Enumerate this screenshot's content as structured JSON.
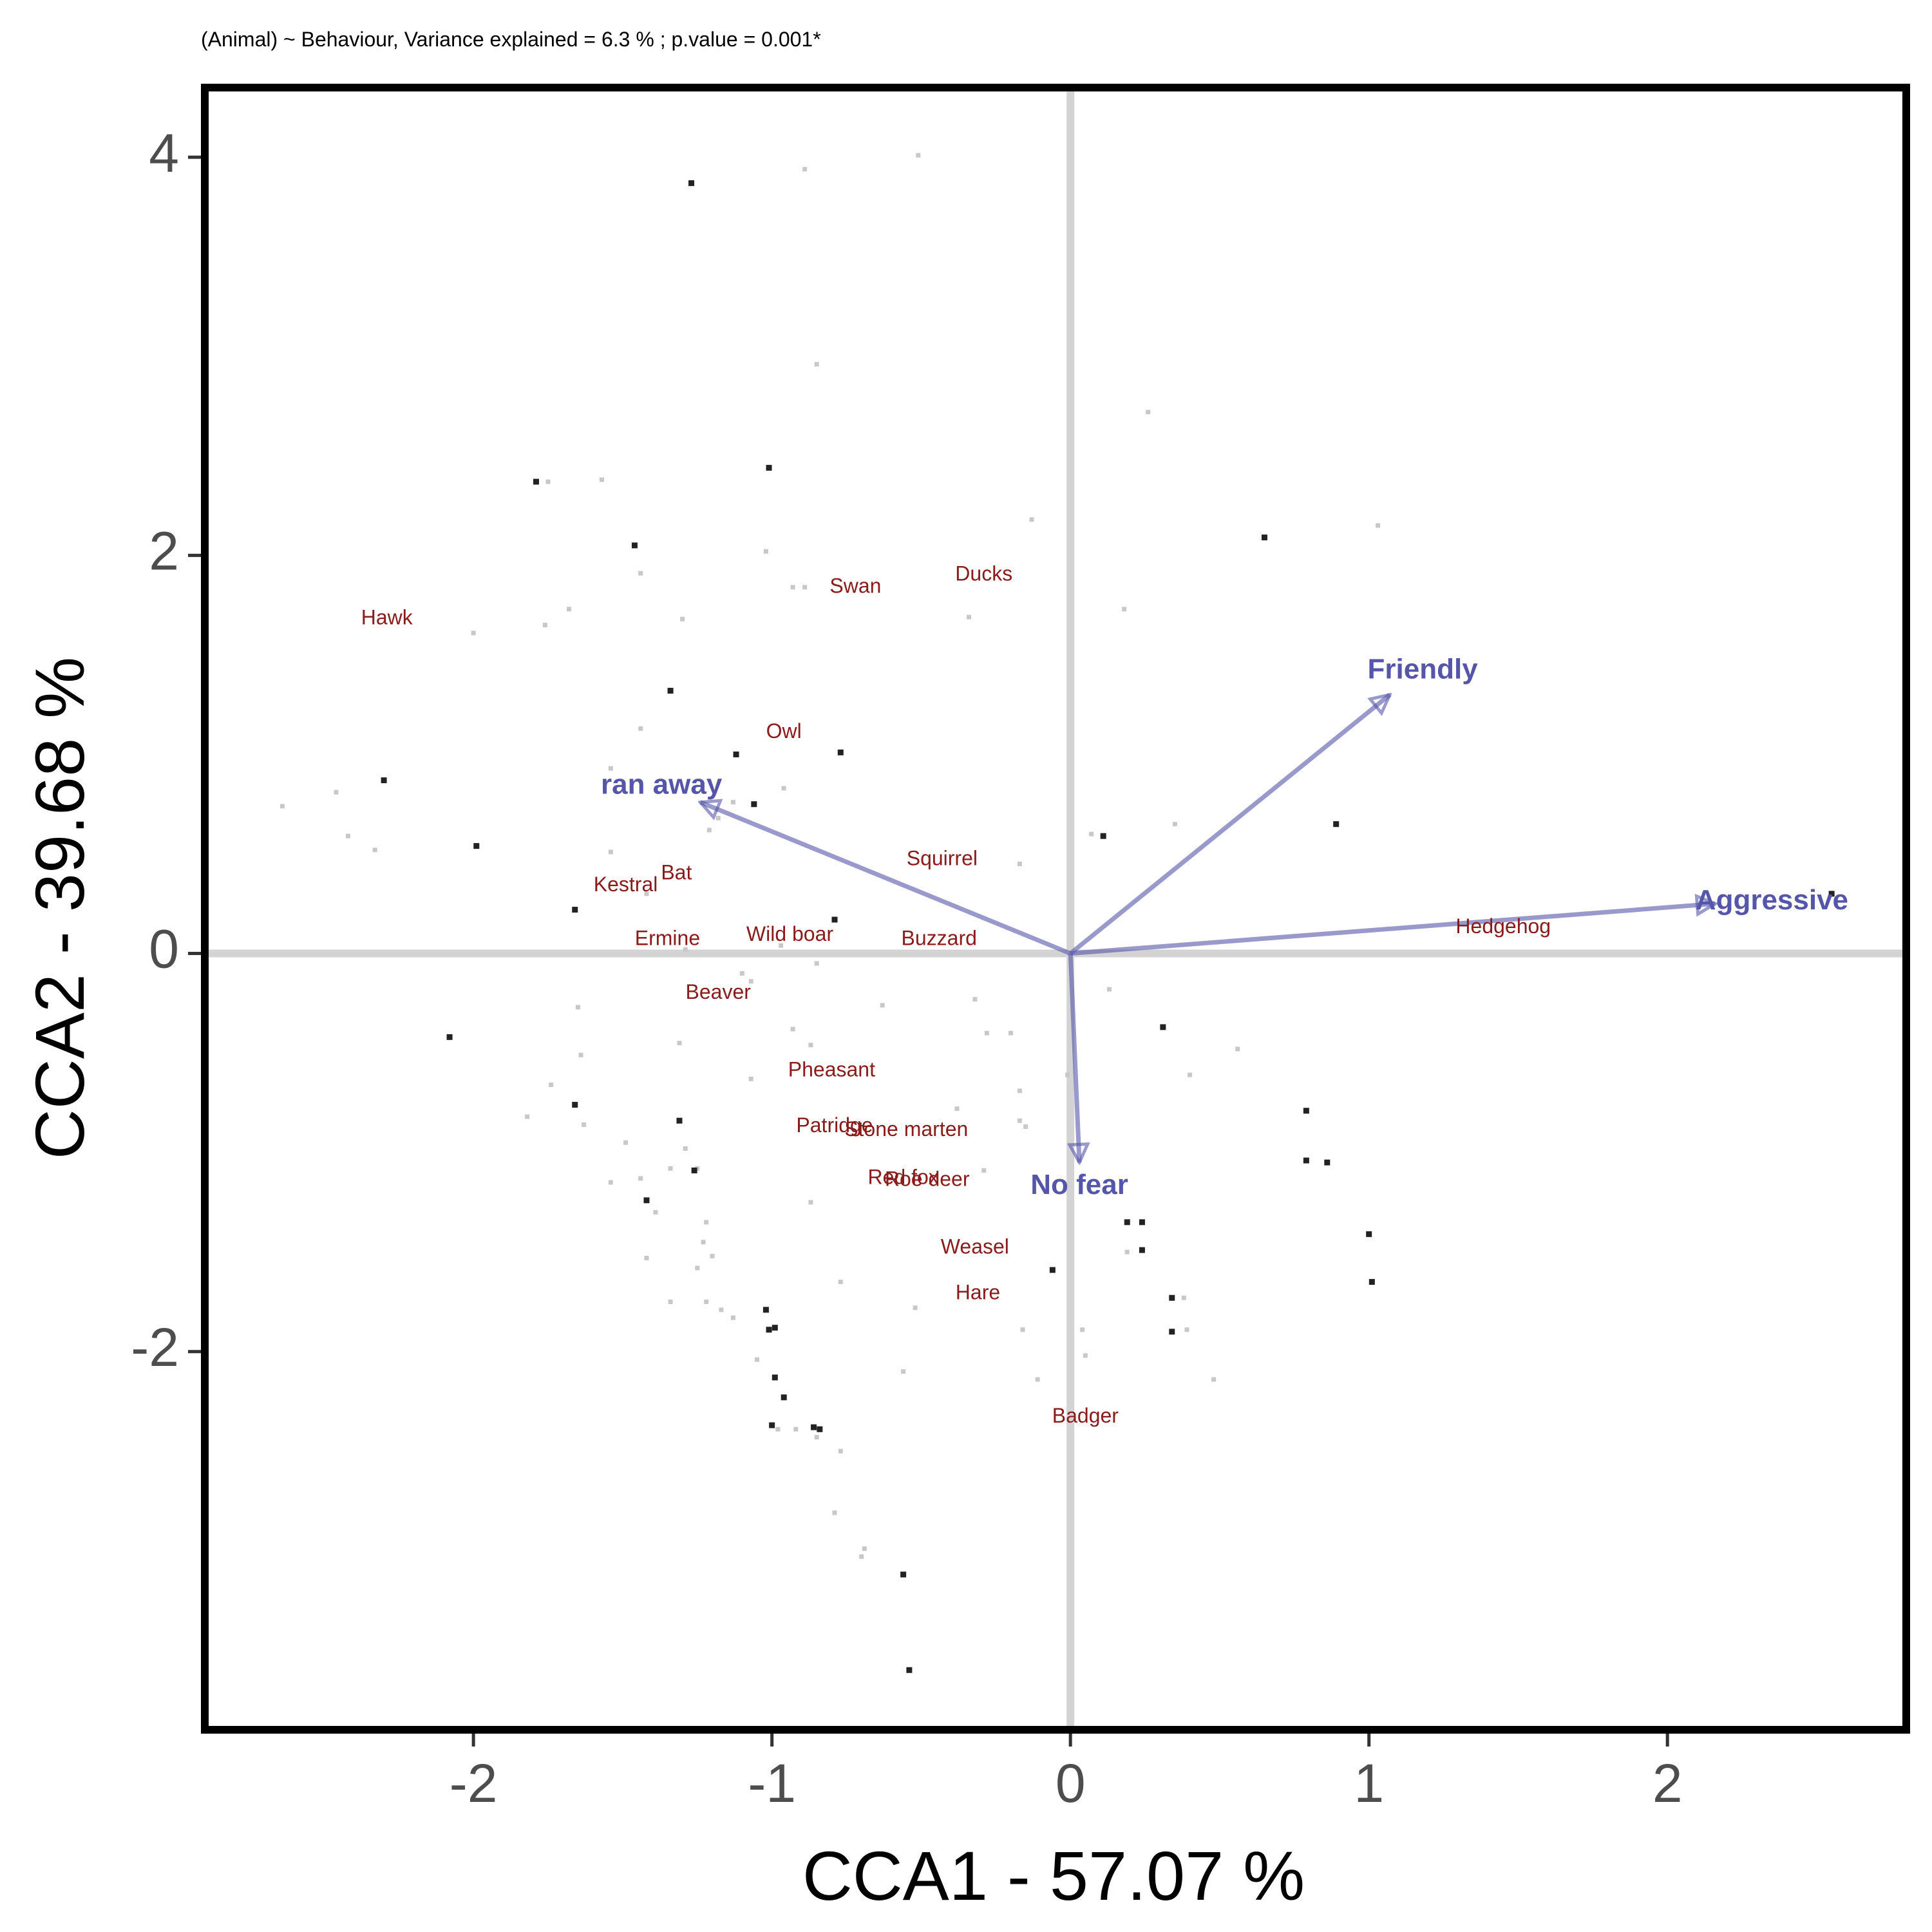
{
  "chart_data": {
    "type": "scatter",
    "title": "(Animal) ~ Behaviour, Variance explained = 6.3 % ; p.value = 0.001*",
    "xlabel": "CCA1 - 57.07 %",
    "ylabel": "CCA2 - 39.68 %",
    "xlim": [
      -2.9,
      2.8
    ],
    "ylim": [
      -3.9,
      4.35
    ],
    "x_ticks": [
      -2,
      -1,
      0,
      1,
      2
    ],
    "y_ticks": [
      -2,
      0,
      2,
      4
    ],
    "x_tick_labels": [
      "-2",
      "-1",
      "0",
      "1",
      "2"
    ],
    "y_tick_labels": [
      "-2",
      "0",
      "2",
      "4"
    ],
    "grid": false,
    "zero_lines": true,
    "colors": {
      "species": "#8b1a1a",
      "vectors": "#5555aa",
      "sites_dark": "#222222",
      "sites_light": "#c8c8c8",
      "zero_line": "#d3d3d3",
      "frame": "#000000"
    },
    "species": [
      {
        "name": "Hawk",
        "x": -2.29,
        "y": 1.68
      },
      {
        "name": "Swan",
        "x": -0.72,
        "y": 1.84
      },
      {
        "name": "Ducks",
        "x": -0.29,
        "y": 1.9
      },
      {
        "name": "Owl",
        "x": -0.96,
        "y": 1.11
      },
      {
        "name": "Squirrel",
        "x": -0.43,
        "y": 0.47
      },
      {
        "name": "Bat",
        "x": -1.32,
        "y": 0.4
      },
      {
        "name": "Kestral",
        "x": -1.49,
        "y": 0.34
      },
      {
        "name": "Ermine",
        "x": -1.35,
        "y": 0.07
      },
      {
        "name": "Wild boar",
        "x": -0.94,
        "y": 0.09
      },
      {
        "name": "Buzzard",
        "x": -0.44,
        "y": 0.07
      },
      {
        "name": "Hedgehog",
        "x": 1.45,
        "y": 0.13
      },
      {
        "name": "Beaver",
        "x": -1.18,
        "y": -0.2
      },
      {
        "name": "Pheasant",
        "x": -0.8,
        "y": -0.59
      },
      {
        "name": "Patridge",
        "x": -0.79,
        "y": -0.87
      },
      {
        "name": "Stone marten",
        "x": -0.55,
        "y": -0.89
      },
      {
        "name": "Red fox",
        "x": -0.56,
        "y": -1.13
      },
      {
        "name": "Roe deer",
        "x": -0.48,
        "y": -1.14
      },
      {
        "name": "Weasel",
        "x": -0.32,
        "y": -1.48
      },
      {
        "name": "Hare",
        "x": -0.31,
        "y": -1.71
      },
      {
        "name": "Badger",
        "x": 0.05,
        "y": -2.33
      }
    ],
    "vectors": [
      {
        "name": "Friendly",
        "x": 1.07,
        "y": 1.3,
        "label_x": 1.18,
        "label_y": 1.42
      },
      {
        "name": "ran away",
        "x": -1.24,
        "y": 0.76,
        "label_x": -1.37,
        "label_y": 0.84
      },
      {
        "name": "Aggressive",
        "x": 2.16,
        "y": 0.25,
        "label_x": 2.35,
        "label_y": 0.26
      },
      {
        "name": "No fear",
        "x": 0.03,
        "y": -1.05,
        "label_x": 0.03,
        "label_y": -1.17
      }
    ],
    "sites": [
      {
        "x": -1.27,
        "y": 3.87,
        "dark": true
      },
      {
        "x": -0.89,
        "y": 3.94,
        "dark": false
      },
      {
        "x": -0.51,
        "y": 4.01,
        "dark": false
      },
      {
        "x": -0.85,
        "y": 2.96,
        "dark": false
      },
      {
        "x": 0.26,
        "y": 2.72,
        "dark": false
      },
      {
        "x": -1.79,
        "y": 2.37,
        "dark": true
      },
      {
        "x": -1.75,
        "y": 2.37,
        "dark": false
      },
      {
        "x": -1.57,
        "y": 2.38,
        "dark": false
      },
      {
        "x": -1.01,
        "y": 2.44,
        "dark": true
      },
      {
        "x": -0.13,
        "y": 2.18,
        "dark": false
      },
      {
        "x": 0.65,
        "y": 2.09,
        "dark": true
      },
      {
        "x": 1.03,
        "y": 2.15,
        "dark": false
      },
      {
        "x": -1.46,
        "y": 2.05,
        "dark": true
      },
      {
        "x": -1.44,
        "y": 1.91,
        "dark": false
      },
      {
        "x": -1.02,
        "y": 2.02,
        "dark": false
      },
      {
        "x": -0.93,
        "y": 1.84,
        "dark": false
      },
      {
        "x": -0.89,
        "y": 1.84,
        "dark": false
      },
      {
        "x": -1.68,
        "y": 1.73,
        "dark": false
      },
      {
        "x": -1.76,
        "y": 1.65,
        "dark": false
      },
      {
        "x": -1.3,
        "y": 1.68,
        "dark": false
      },
      {
        "x": -2.0,
        "y": 1.61,
        "dark": false
      },
      {
        "x": -0.34,
        "y": 1.69,
        "dark": false
      },
      {
        "x": 0.18,
        "y": 1.73,
        "dark": false
      },
      {
        "x": -1.34,
        "y": 1.32,
        "dark": true
      },
      {
        "x": -1.44,
        "y": 1.13,
        "dark": false
      },
      {
        "x": -1.12,
        "y": 1.0,
        "dark": true
      },
      {
        "x": -0.77,
        "y": 1.01,
        "dark": true
      },
      {
        "x": -2.3,
        "y": 0.87,
        "dark": true
      },
      {
        "x": -1.54,
        "y": 0.93,
        "dark": false
      },
      {
        "x": -2.46,
        "y": 0.81,
        "dark": false
      },
      {
        "x": -2.64,
        "y": 0.74,
        "dark": false
      },
      {
        "x": -0.96,
        "y": 0.83,
        "dark": false
      },
      {
        "x": -1.06,
        "y": 0.75,
        "dark": true
      },
      {
        "x": -1.13,
        "y": 0.76,
        "dark": false
      },
      {
        "x": -1.18,
        "y": 0.68,
        "dark": false
      },
      {
        "x": 0.35,
        "y": 0.65,
        "dark": false
      },
      {
        "x": 0.89,
        "y": 0.65,
        "dark": true
      },
      {
        "x": 0.11,
        "y": 0.59,
        "dark": true
      },
      {
        "x": 0.07,
        "y": 0.6,
        "dark": false
      },
      {
        "x": -2.42,
        "y": 0.59,
        "dark": false
      },
      {
        "x": -1.99,
        "y": 0.54,
        "dark": true
      },
      {
        "x": -2.33,
        "y": 0.52,
        "dark": false
      },
      {
        "x": -1.54,
        "y": 0.51,
        "dark": false
      },
      {
        "x": -1.21,
        "y": 0.62,
        "dark": false
      },
      {
        "x": -0.17,
        "y": 0.45,
        "dark": false
      },
      {
        "x": -1.66,
        "y": 0.22,
        "dark": true
      },
      {
        "x": -1.42,
        "y": 0.3,
        "dark": false
      },
      {
        "x": -0.79,
        "y": 0.17,
        "dark": true
      },
      {
        "x": -0.97,
        "y": 0.04,
        "dark": false
      },
      {
        "x": -1.29,
        "y": 0.02,
        "dark": false
      },
      {
        "x": 2.55,
        "y": 0.3,
        "dark": true
      },
      {
        "x": -0.85,
        "y": -0.05,
        "dark": false
      },
      {
        "x": -1.1,
        "y": -0.1,
        "dark": false
      },
      {
        "x": -1.07,
        "y": -0.14,
        "dark": false
      },
      {
        "x": -0.32,
        "y": -0.23,
        "dark": false
      },
      {
        "x": -0.63,
        "y": -0.26,
        "dark": false
      },
      {
        "x": 0.13,
        "y": -0.18,
        "dark": false
      },
      {
        "x": -1.65,
        "y": -0.27,
        "dark": false
      },
      {
        "x": -1.31,
        "y": -0.45,
        "dark": false
      },
      {
        "x": -0.93,
        "y": -0.38,
        "dark": false
      },
      {
        "x": -0.87,
        "y": -0.46,
        "dark": false
      },
      {
        "x": -0.28,
        "y": -0.4,
        "dark": false
      },
      {
        "x": -0.2,
        "y": -0.4,
        "dark": false
      },
      {
        "x": 0.31,
        "y": -0.37,
        "dark": true
      },
      {
        "x": 0.56,
        "y": -0.48,
        "dark": false
      },
      {
        "x": -2.08,
        "y": -0.42,
        "dark": true
      },
      {
        "x": -1.64,
        "y": -0.51,
        "dark": false
      },
      {
        "x": -1.07,
        "y": -0.63,
        "dark": false
      },
      {
        "x": -0.01,
        "y": -0.61,
        "dark": false
      },
      {
        "x": 0.4,
        "y": -0.61,
        "dark": false
      },
      {
        "x": -1.74,
        "y": -0.66,
        "dark": false
      },
      {
        "x": -0.17,
        "y": -0.69,
        "dark": false
      },
      {
        "x": -1.66,
        "y": -0.76,
        "dark": true
      },
      {
        "x": -1.82,
        "y": -0.82,
        "dark": false
      },
      {
        "x": -0.38,
        "y": -0.78,
        "dark": false
      },
      {
        "x": 0.79,
        "y": -0.79,
        "dark": true
      },
      {
        "x": -1.63,
        "y": -0.86,
        "dark": false
      },
      {
        "x": -1.31,
        "y": -0.84,
        "dark": true
      },
      {
        "x": -1.29,
        "y": -0.98,
        "dark": false
      },
      {
        "x": -0.17,
        "y": -0.84,
        "dark": false
      },
      {
        "x": -0.15,
        "y": -0.87,
        "dark": false
      },
      {
        "x": -1.49,
        "y": -0.95,
        "dark": false
      },
      {
        "x": -1.25,
        "y": -1.08,
        "dark": false
      },
      {
        "x": -1.34,
        "y": -1.08,
        "dark": false
      },
      {
        "x": -1.26,
        "y": -1.09,
        "dark": true
      },
      {
        "x": -0.29,
        "y": -1.09,
        "dark": false
      },
      {
        "x": 0.79,
        "y": -1.04,
        "dark": true
      },
      {
        "x": 0.86,
        "y": -1.05,
        "dark": true
      },
      {
        "x": -1.44,
        "y": -1.13,
        "dark": false
      },
      {
        "x": -1.54,
        "y": -1.15,
        "dark": false
      },
      {
        "x": -1.42,
        "y": -1.24,
        "dark": true
      },
      {
        "x": -1.39,
        "y": -1.3,
        "dark": false
      },
      {
        "x": -0.87,
        "y": -1.25,
        "dark": false
      },
      {
        "x": 0.19,
        "y": -1.35,
        "dark": true
      },
      {
        "x": 0.24,
        "y": -1.35,
        "dark": true
      },
      {
        "x": -1.22,
        "y": -1.35,
        "dark": false
      },
      {
        "x": 1.0,
        "y": -1.41,
        "dark": true
      },
      {
        "x": -1.23,
        "y": -1.45,
        "dark": false
      },
      {
        "x": -1.42,
        "y": -1.53,
        "dark": false
      },
      {
        "x": -1.2,
        "y": -1.52,
        "dark": false
      },
      {
        "x": 0.19,
        "y": -1.5,
        "dark": false
      },
      {
        "x": 0.24,
        "y": -1.49,
        "dark": true
      },
      {
        "x": -1.25,
        "y": -1.58,
        "dark": false
      },
      {
        "x": -0.06,
        "y": -1.59,
        "dark": true
      },
      {
        "x": -0.77,
        "y": -1.65,
        "dark": false
      },
      {
        "x": 1.01,
        "y": -1.65,
        "dark": true
      },
      {
        "x": 0.34,
        "y": -1.73,
        "dark": true
      },
      {
        "x": 0.38,
        "y": -1.73,
        "dark": false
      },
      {
        "x": -1.34,
        "y": -1.75,
        "dark": false
      },
      {
        "x": -1.22,
        "y": -1.75,
        "dark": false
      },
      {
        "x": -0.52,
        "y": -1.78,
        "dark": false
      },
      {
        "x": -1.17,
        "y": -1.79,
        "dark": false
      },
      {
        "x": -1.02,
        "y": -1.79,
        "dark": true
      },
      {
        "x": -1.13,
        "y": -1.83,
        "dark": false
      },
      {
        "x": -1.01,
        "y": -1.89,
        "dark": true
      },
      {
        "x": -0.99,
        "y": -1.88,
        "dark": true
      },
      {
        "x": -0.16,
        "y": -1.89,
        "dark": false
      },
      {
        "x": 0.04,
        "y": -1.89,
        "dark": false
      },
      {
        "x": 0.34,
        "y": -1.9,
        "dark": true
      },
      {
        "x": 0.39,
        "y": -1.89,
        "dark": false
      },
      {
        "x": -1.05,
        "y": -2.04,
        "dark": false
      },
      {
        "x": 0.05,
        "y": -2.02,
        "dark": false
      },
      {
        "x": -0.56,
        "y": -2.1,
        "dark": false
      },
      {
        "x": -0.99,
        "y": -2.13,
        "dark": true
      },
      {
        "x": -0.11,
        "y": -2.14,
        "dark": false
      },
      {
        "x": 0.48,
        "y": -2.14,
        "dark": false
      },
      {
        "x": -0.96,
        "y": -2.23,
        "dark": true
      },
      {
        "x": -1.0,
        "y": -2.37,
        "dark": true
      },
      {
        "x": -0.98,
        "y": -2.39,
        "dark": false
      },
      {
        "x": -0.92,
        "y": -2.39,
        "dark": false
      },
      {
        "x": -0.86,
        "y": -2.38,
        "dark": true
      },
      {
        "x": -0.84,
        "y": -2.39,
        "dark": true
      },
      {
        "x": -0.85,
        "y": -2.43,
        "dark": false
      },
      {
        "x": -0.77,
        "y": -2.5,
        "dark": false
      },
      {
        "x": -0.79,
        "y": -2.81,
        "dark": false
      },
      {
        "x": -0.69,
        "y": -2.99,
        "dark": false
      },
      {
        "x": -0.7,
        "y": -3.03,
        "dark": false
      },
      {
        "x": -0.56,
        "y": -3.12,
        "dark": true
      },
      {
        "x": -0.54,
        "y": -3.6,
        "dark": true
      }
    ]
  }
}
